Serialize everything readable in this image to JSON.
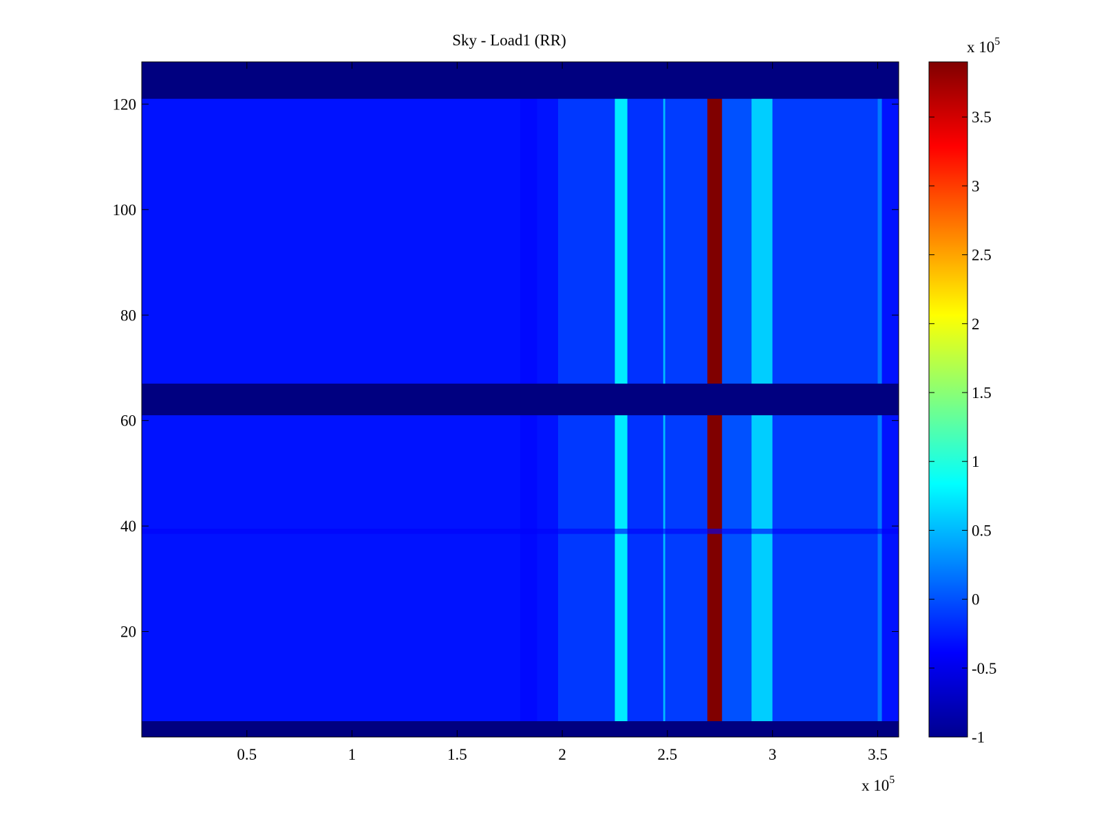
{
  "chart_data": {
    "type": "heatmap",
    "title": "Sky - Load1 (RR)",
    "colormap": "jet",
    "xlabel": "",
    "ylabel": "",
    "x_exponent_label": "x 10",
    "x_exponent_power": "5",
    "xlim": [
      0,
      360000
    ],
    "ylim": [
      0,
      128
    ],
    "x_ticks": [
      {
        "value": 50000,
        "label": "0.5"
      },
      {
        "value": 100000,
        "label": "1"
      },
      {
        "value": 150000,
        "label": "1.5"
      },
      {
        "value": 200000,
        "label": "2"
      },
      {
        "value": 250000,
        "label": "2.5"
      },
      {
        "value": 300000,
        "label": "3"
      },
      {
        "value": 350000,
        "label": "3.5"
      }
    ],
    "y_ticks": [
      {
        "value": 20,
        "label": "20"
      },
      {
        "value": 40,
        "label": "40"
      },
      {
        "value": 60,
        "label": "60"
      },
      {
        "value": 80,
        "label": "80"
      },
      {
        "value": 100,
        "label": "100"
      },
      {
        "value": 120,
        "label": "120"
      }
    ],
    "colorbar": {
      "exponent_label": "x 10",
      "exponent_power": "5",
      "range": [
        -1,
        3.9
      ],
      "ticks": [
        {
          "value": -1,
          "label": "-1"
        },
        {
          "value": -0.5,
          "label": "-0.5"
        },
        {
          "value": 0,
          "label": "0"
        },
        {
          "value": 0.5,
          "label": "0.5"
        },
        {
          "value": 1,
          "label": "1"
        },
        {
          "value": 1.5,
          "label": "1.5"
        },
        {
          "value": 2,
          "label": "2"
        },
        {
          "value": 2.5,
          "label": "2.5"
        },
        {
          "value": 3,
          "label": "3"
        },
        {
          "value": 3.5,
          "label": "3.5"
        }
      ]
    },
    "background_value": -0.3,
    "empty_value": -1,
    "empty_row_bands": [
      {
        "y0": 121,
        "y1": 128
      },
      {
        "y0": 61,
        "y1": 67
      },
      {
        "y0": 0,
        "y1": 3
      }
    ],
    "column_bands": [
      {
        "x0": 180000,
        "x1": 188000,
        "value": -0.35
      },
      {
        "x0": 198000,
        "x1": 225000,
        "value": -0.12
      },
      {
        "x0": 225000,
        "x1": 231000,
        "value": 0.75
      },
      {
        "x0": 231000,
        "x1": 248000,
        "value": -0.15
      },
      {
        "x0": 248000,
        "x1": 249000,
        "value": 0.5
      },
      {
        "x0": 249000,
        "x1": 269000,
        "value": -0.1
      },
      {
        "x0": 269000,
        "x1": 276000,
        "value": 3.9
      },
      {
        "x0": 276000,
        "x1": 290000,
        "value": 0.0
      },
      {
        "x0": 290000,
        "x1": 300000,
        "value": 0.6
      },
      {
        "x0": 300000,
        "x1": 350000,
        "value": -0.1
      },
      {
        "x0": 350000,
        "x1": 352000,
        "value": 0.2
      }
    ],
    "row_bands": [
      {
        "y0": 38.5,
        "y1": 39.5,
        "value": -0.4
      }
    ]
  }
}
